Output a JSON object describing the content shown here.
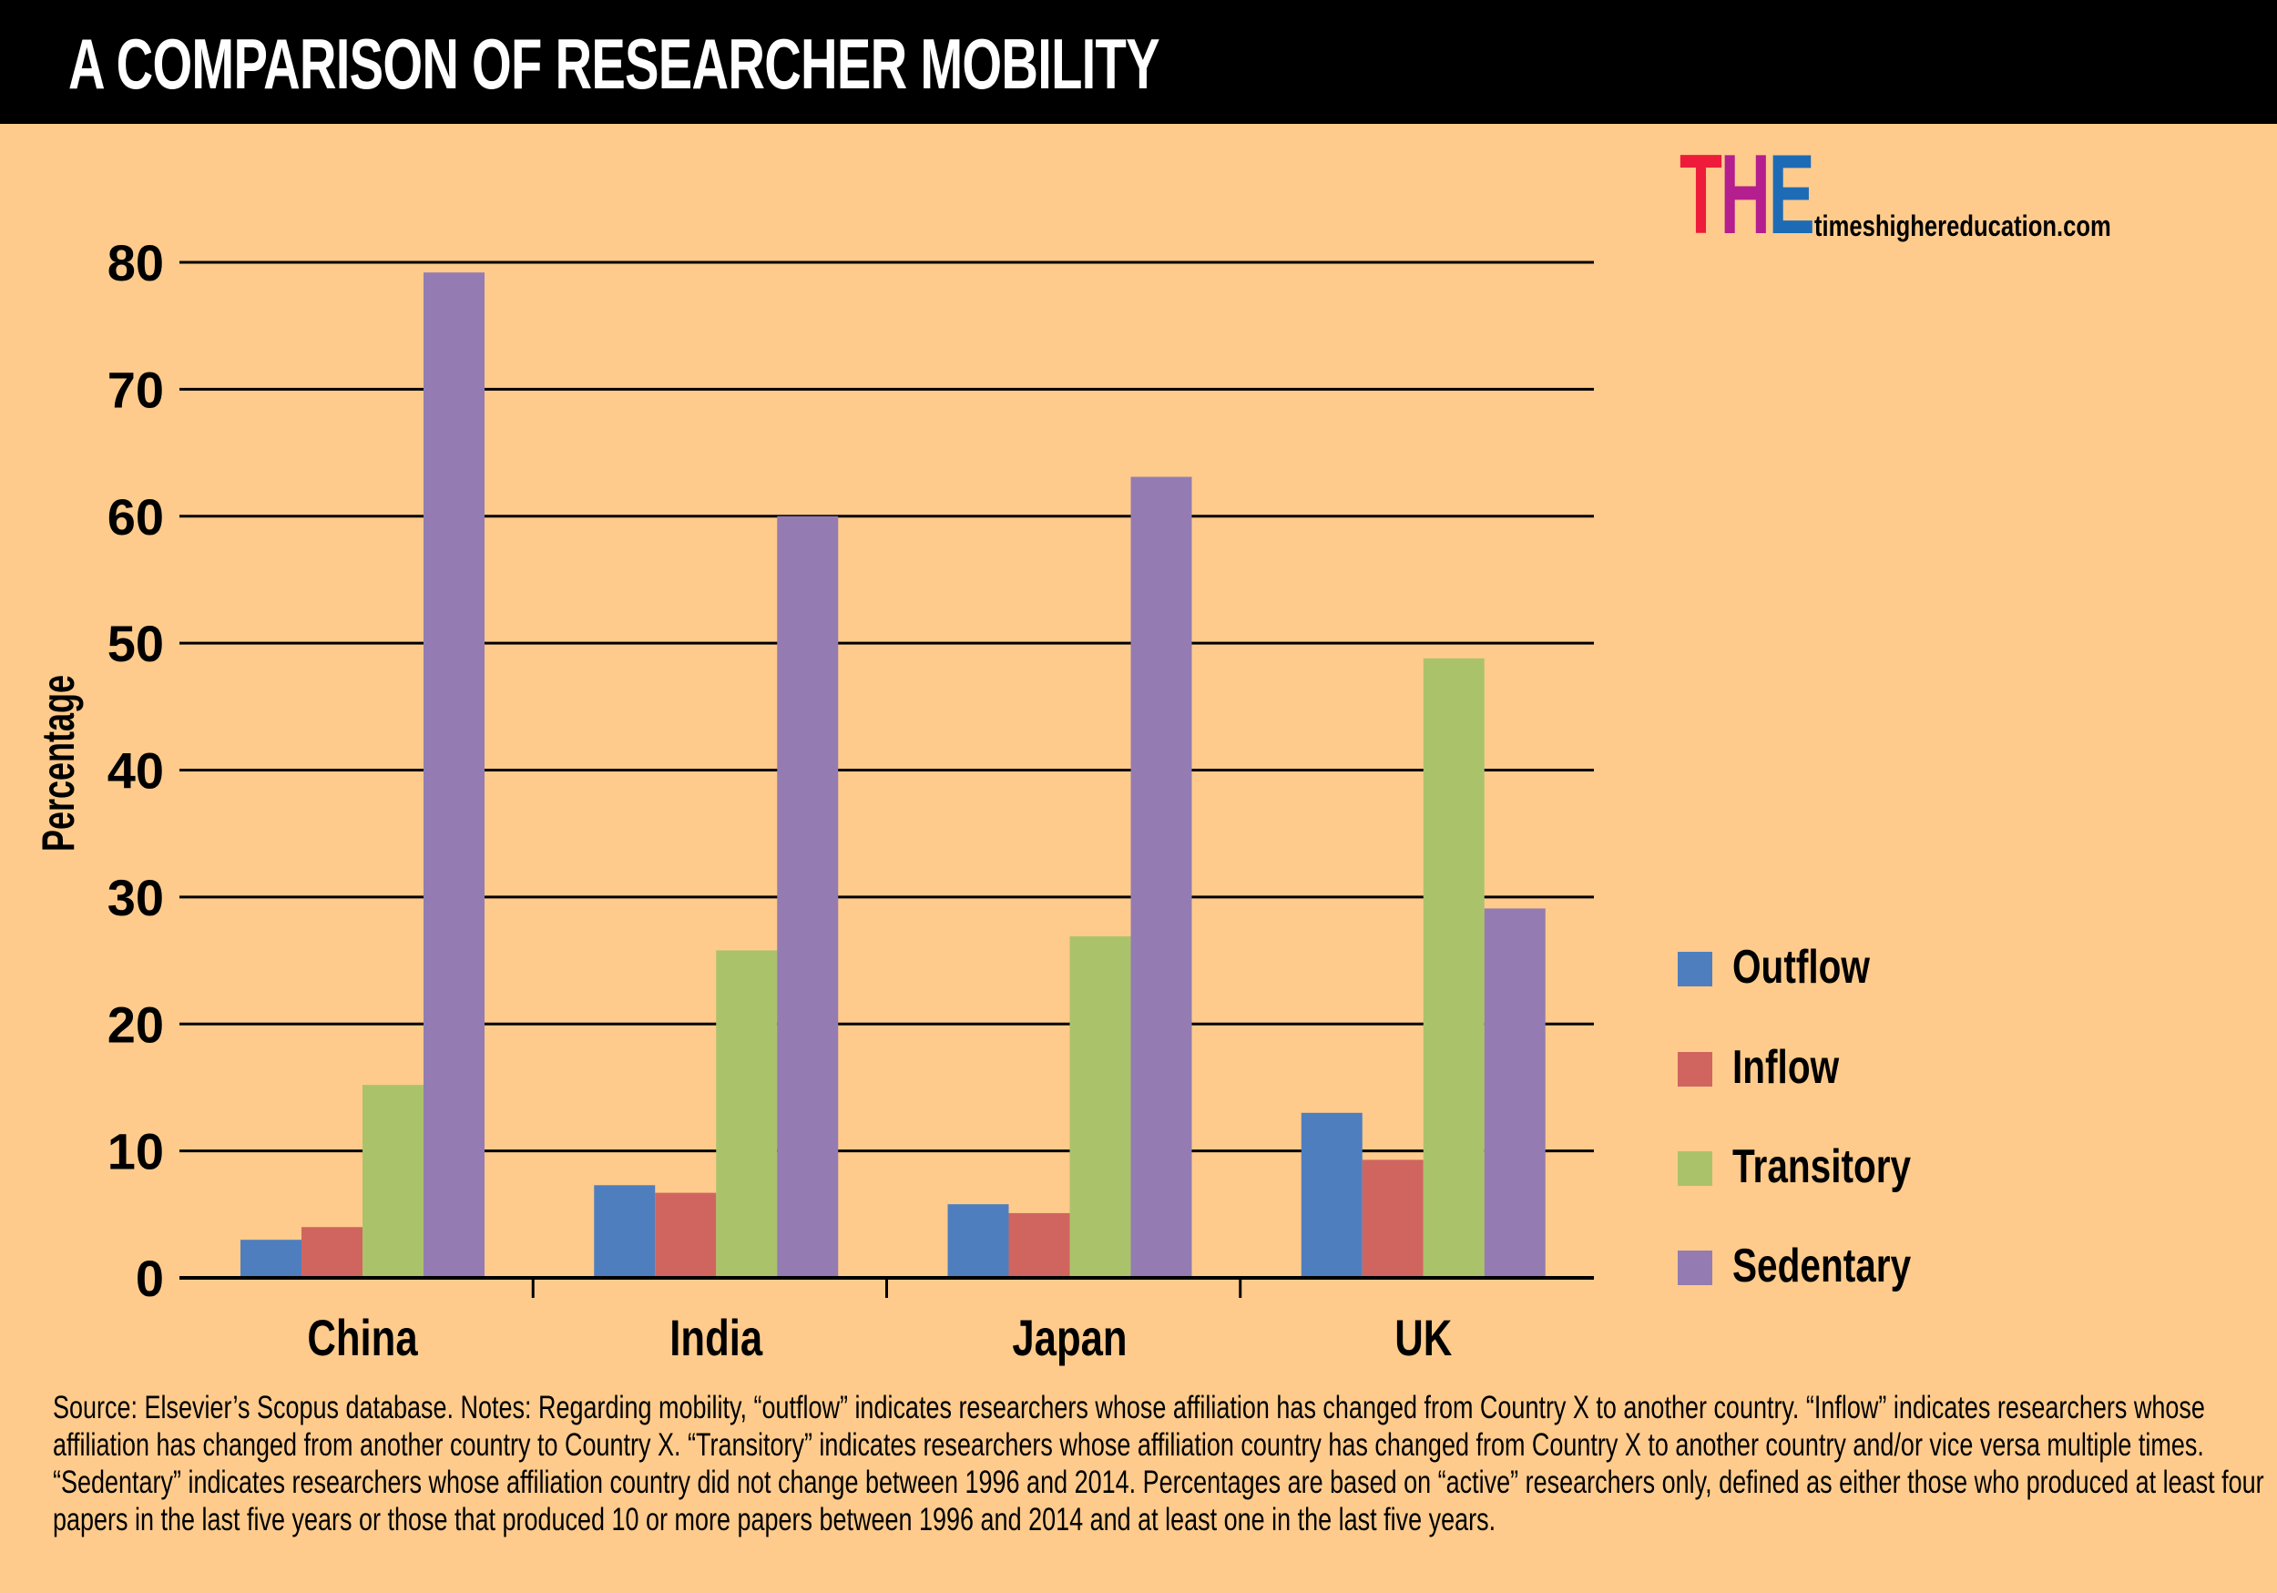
{
  "header": {
    "title": "A COMPARISON OF RESEARCHER MOBILITY"
  },
  "branding": {
    "logo_letters": [
      {
        "char": "T",
        "color": "#EE1C3A"
      },
      {
        "char": "H",
        "color": "#B51E8E"
      },
      {
        "char": "E",
        "color": "#1E6BB5"
      }
    ],
    "website": "timeshighereducation.com"
  },
  "chart_data": {
    "type": "bar",
    "title": "A COMPARISON OF RESEARCHER MOBILITY",
    "xlabel": "",
    "ylabel": "Percentage",
    "categories": [
      "China",
      "India",
      "Japan",
      "UK"
    ],
    "series": [
      {
        "name": "Outflow",
        "color": "#4F7EBE",
        "values": [
          3.0,
          7.3,
          5.8,
          13.0
        ]
      },
      {
        "name": "Inflow",
        "color": "#D06560",
        "values": [
          4.0,
          6.7,
          5.1,
          9.3
        ]
      },
      {
        "name": "Transitory",
        "color": "#AAC36B",
        "values": [
          15.2,
          25.8,
          26.9,
          48.8
        ]
      },
      {
        "name": "Sedentary",
        "color": "#947CB2",
        "values": [
          79.2,
          60.0,
          63.1,
          29.1
        ]
      }
    ],
    "ylim": [
      0,
      80
    ],
    "yticks": [
      0,
      10,
      20,
      30,
      40,
      50,
      60,
      70,
      80
    ],
    "grid": true,
    "legend_position": "right"
  },
  "footnote": "Source: Elsevier’s Scopus database. Notes: Regarding mobility, “outflow” indicates researchers whose affiliation has changed from Country X to another country. “Inflow” indicates researchers whose affiliation has changed from another country to Country X. “Transitory” indicates researchers whose affiliation country has changed from Country X to another country and/or vice versa multiple times. “Sedentary” indicates researchers whose affiliation country did not change between 1996 and 2014. Percentages are based on “active” researchers only, defined as either those who produced at least four papers in the last five years or those that produced 10 or more papers between 1996 and 2014 and at least one in the last five years."
}
